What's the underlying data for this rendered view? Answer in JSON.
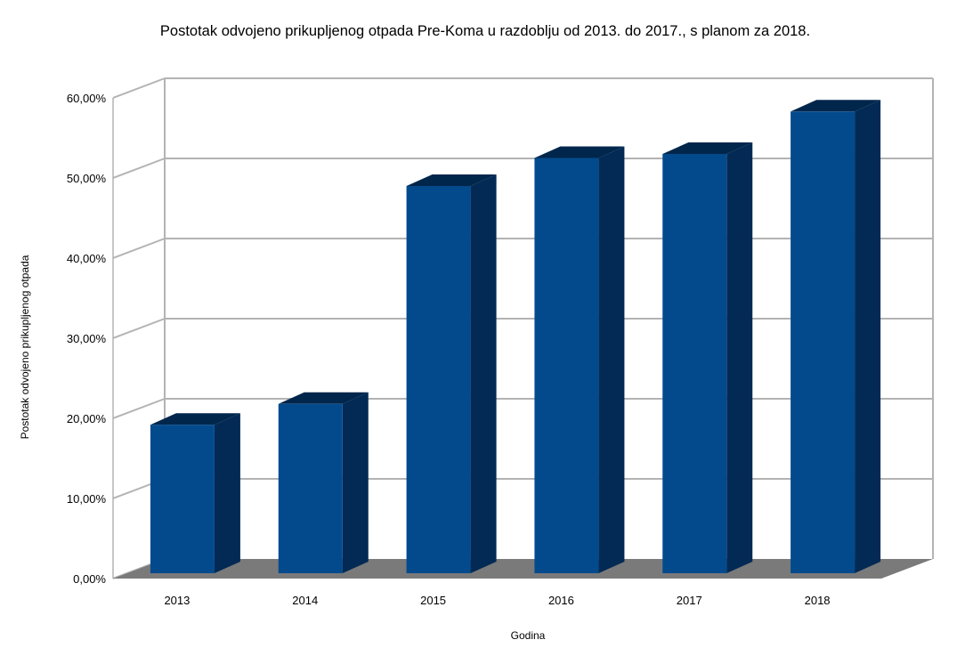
{
  "chart_data": {
    "type": "bar",
    "title": "Postotak odvojeno prikupljenog otpada Pre-Koma u razdoblju od 2013. do 2017., s planom za 2018.",
    "xlabel": "Godina",
    "ylabel": "Postotak odvojeno prikupljenog otpada",
    "categories": [
      "2013",
      "2014",
      "2015",
      "2016",
      "2017",
      "2018"
    ],
    "values": [
      19.2,
      21.8,
      49.0,
      52.5,
      53.0,
      58.3
    ],
    "ylim": [
      0,
      60
    ],
    "yticks": [
      0,
      10,
      20,
      30,
      40,
      50,
      60
    ],
    "ytick_labels": [
      "0,00%",
      "10,00%",
      "20,00%",
      "30,00%",
      "40,00%",
      "50,00%",
      "60,00%"
    ],
    "grid": true,
    "legend": "none",
    "colors": {
      "bar_front": "#034a8d",
      "bar_side": "#022a55",
      "bar_top": "#01264c",
      "floor": "#7a7a7a",
      "grid": "#b3b3b3"
    }
  }
}
